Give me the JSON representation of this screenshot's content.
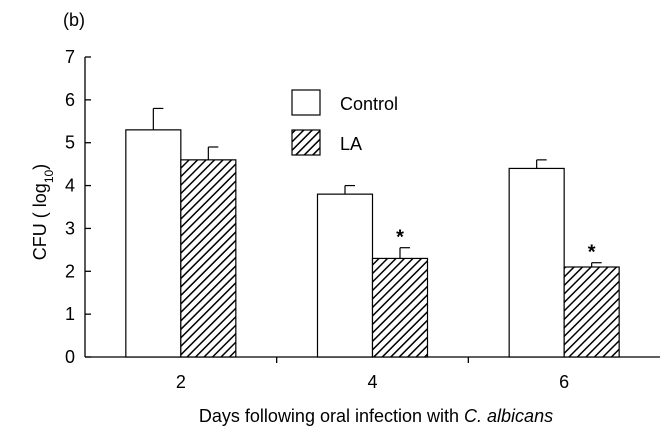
{
  "panel_label": "(b)",
  "chart_data": {
    "type": "bar",
    "categories": [
      "2",
      "4",
      "6"
    ],
    "series": [
      {
        "name": "Control",
        "fill": "none",
        "values": [
          5.3,
          3.8,
          4.4
        ],
        "errors": [
          0.5,
          0.2,
          0.2
        ],
        "significance": [
          "",
          "",
          ""
        ]
      },
      {
        "name": "LA",
        "fill": "hatched",
        "values": [
          4.6,
          2.3,
          2.1
        ],
        "errors": [
          0.3,
          0.25,
          0.1
        ],
        "significance": [
          "",
          "*",
          "*"
        ]
      }
    ],
    "ylim": [
      0,
      7
    ],
    "yticks": [
      0,
      1,
      2,
      3,
      4,
      5,
      6,
      7
    ],
    "ylabel": {
      "prefix": "CFU ( log",
      "subscript": "10",
      "suffix": ")"
    },
    "xlabel": {
      "prefix": "Days following oral infection with ",
      "italic": "C. albicans"
    },
    "legend": {
      "position": "top-center",
      "entries": [
        "Control",
        "LA"
      ]
    },
    "grid": false,
    "colors": {
      "bar_fill": "#ffffff",
      "stroke": "#000000",
      "hatch": "#000000"
    }
  }
}
